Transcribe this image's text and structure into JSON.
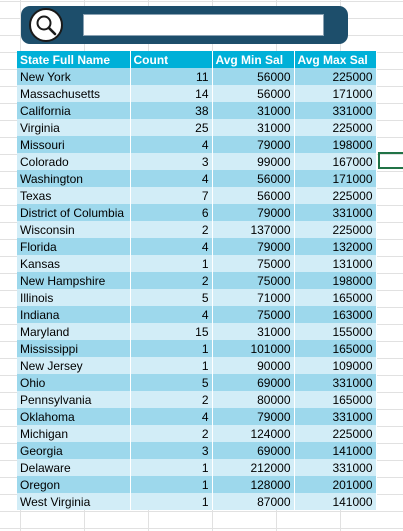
{
  "search": {
    "value": "",
    "icon": "magnifier-icon"
  },
  "table": {
    "headers": [
      "State Full Name",
      "Count",
      "Avg Min Sal",
      "Avg Max Sal"
    ],
    "rows": [
      [
        "New York",
        "11",
        "56000",
        "225000"
      ],
      [
        "Massachusetts",
        "14",
        "56000",
        "171000"
      ],
      [
        "California",
        "38",
        "31000",
        "331000"
      ],
      [
        "Virginia",
        "25",
        "31000",
        "225000"
      ],
      [
        "Missouri",
        "4",
        "79000",
        "198000"
      ],
      [
        "Colorado",
        "3",
        "99000",
        "167000"
      ],
      [
        "Washington",
        "4",
        "56000",
        "171000"
      ],
      [
        "Texas",
        "7",
        "56000",
        "225000"
      ],
      [
        "District of Columbia",
        "6",
        "79000",
        "331000"
      ],
      [
        "Wisconsin",
        "2",
        "137000",
        "225000"
      ],
      [
        "Florida",
        "4",
        "79000",
        "132000"
      ],
      [
        "Kansas",
        "1",
        "75000",
        "131000"
      ],
      [
        "New Hampshire",
        "2",
        "75000",
        "198000"
      ],
      [
        "Illinois",
        "5",
        "71000",
        "165000"
      ],
      [
        "Indiana",
        "4",
        "75000",
        "163000"
      ],
      [
        "Maryland",
        "15",
        "31000",
        "155000"
      ],
      [
        "Mississippi",
        "1",
        "101000",
        "165000"
      ],
      [
        "New Jersey",
        "1",
        "90000",
        "109000"
      ],
      [
        "Ohio",
        "5",
        "69000",
        "331000"
      ],
      [
        "Pennsylvania",
        "2",
        "80000",
        "165000"
      ],
      [
        "Oklahoma",
        "4",
        "79000",
        "331000"
      ],
      [
        "Michigan",
        "2",
        "124000",
        "225000"
      ],
      [
        "Georgia",
        "3",
        "69000",
        "141000"
      ],
      [
        "Delaware",
        "1",
        "212000",
        "331000"
      ],
      [
        "Oregon",
        "1",
        "128000",
        "201000"
      ],
      [
        "West Virginia",
        "1",
        "87000",
        "141000"
      ]
    ]
  },
  "colors": {
    "header": "#00b0d8",
    "band_dark": "#9dd8ec",
    "band_light": "#d2edf7",
    "search_frame": "#1d4e6b",
    "selection": "#217346"
  }
}
